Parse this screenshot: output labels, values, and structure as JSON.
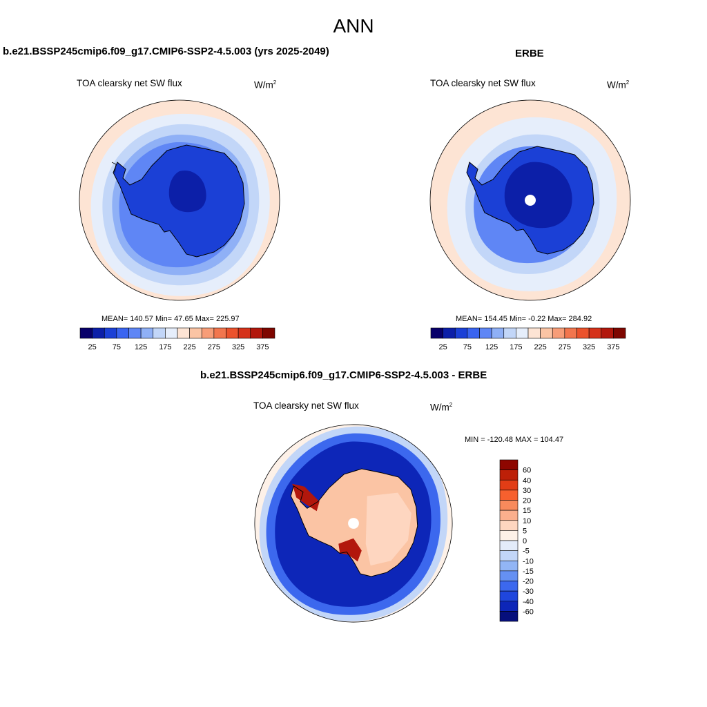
{
  "main_title": "ANN",
  "panels": {
    "model": {
      "title": "b.e21.BSSP245cmip6.f09_g17.CMIP6-SSP2-4.5.003 (yrs 2025-2049)",
      "variable": "TOA clearsky net SW flux",
      "units_base": "W/m",
      "units_sup": "2",
      "stats": "MEAN= 140.57  Min=  47.65  Max= 225.97"
    },
    "obs": {
      "title": "ERBE",
      "variable": "TOA clearsky net SW flux",
      "units_base": "W/m",
      "units_sup": "2",
      "stats": "MEAN= 154.45  Min=  -0.22  Max= 284.92"
    },
    "diff": {
      "title": "b.e21.BSSP245cmip6.f09_g17.CMIP6-SSP2-4.5.003 - ERBE",
      "variable": "TOA clearsky net SW flux",
      "units_base": "W/m",
      "units_sup": "2",
      "stats": "MIN = -120.48 MAX = 104.47"
    }
  },
  "colorbar_abs": {
    "colors": [
      "#08006a",
      "#0c1fa8",
      "#1b40d6",
      "#3a64f0",
      "#5f86f5",
      "#8fb0f6",
      "#c2d6f8",
      "#e6eefb",
      "#fde4d4",
      "#fbc4a4",
      "#f79d78",
      "#f2764e",
      "#eb522c",
      "#d5321a",
      "#b2170c",
      "#7e0600"
    ],
    "labels": [
      "25",
      "75",
      "125",
      "175",
      "225",
      "275",
      "325",
      "375"
    ]
  },
  "colorbar_diff": {
    "colors": [
      "#8e0600",
      "#bd2008",
      "#e23d16",
      "#f7602e",
      "#f88a5c",
      "#fbaf8d",
      "#fed6c0",
      "#fdf1e8",
      "#e3ecfa",
      "#c2d6f8",
      "#92b5f5",
      "#6590f2",
      "#3c68ee",
      "#1f46dd",
      "#0d26b8",
      "#060f7c"
    ],
    "labels": [
      "60",
      "40",
      "30",
      "20",
      "15",
      "10",
      "5",
      "0",
      "-5",
      "-10",
      "-15",
      "-20",
      "-30",
      "-40",
      "-60"
    ]
  },
  "map_colors": {
    "model": {
      "ocean_outer": "#fde4d4",
      "ring1": "#e6eefb",
      "ring2": "#c2d6f8",
      "ring3": "#8fb0f6",
      "ring4": "#5f86f5",
      "ice": "#1b40d6",
      "plateau": "#0c1fa8"
    },
    "obs": {
      "ocean_outer": "#fde4d4",
      "ring1": "#e6eefb",
      "ring2": "#c2d6f8",
      "ring3": "#5f86f5",
      "ice": "#1b40d6",
      "plateau": "#0c1fa8",
      "pole": "#ffffff"
    },
    "diff": {
      "outer": "#fdf1e8",
      "band_light": "#c2d6f8",
      "band_mid": "#3c68ee",
      "band_dark": "#0d26b8",
      "ice": "#fbc4a4",
      "ice_light": "#fed6c0",
      "hot": "#b2170c",
      "pole": "#ffffff"
    }
  }
}
